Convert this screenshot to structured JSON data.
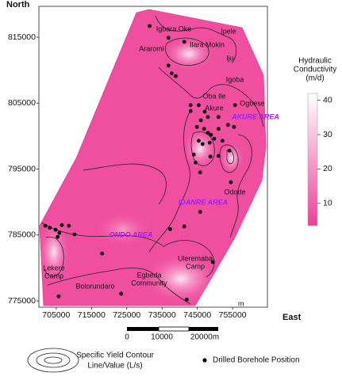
{
  "map": {
    "y_axis_label": "North",
    "x_axis_label": "East",
    "xlim": [
      700000,
      765000
    ],
    "ylim": [
      774000,
      819000
    ],
    "xticks": [
      705000,
      715000,
      725000,
      735000,
      745000,
      755000
    ],
    "yticks": [
      775000,
      785000,
      795000,
      805000,
      815000
    ],
    "places": [
      [
        "Igbara Oke"
      ],
      [
        "Ipele"
      ],
      [
        "Ilara Mokin"
      ],
      [
        "Araromi"
      ],
      [
        "Iju"
      ],
      [
        "Igoba"
      ],
      [
        "Oba Ile"
      ],
      [
        "Ogbese"
      ],
      [
        "Akure"
      ],
      [
        "Odode"
      ],
      [
        "Uleremaba",
        "Camp"
      ],
      [
        "Egbeda",
        "Community"
      ],
      [
        "Lekere",
        "Camp"
      ],
      [
        "Bolorundaro"
      ]
    ],
    "area_labels": [
      "AKURE AREA",
      "IDANRE AREA",
      "ONDO AREA"
    ],
    "corner_mark": "m",
    "boreholes": {
      "x": [
        731500,
        736800,
        741300,
        736800,
        737700,
        738900,
        743100,
        743100,
        745400,
        747100,
        748000,
        746000,
        744900,
        746900,
        748000,
        748900,
        749800,
        745400,
        746500,
        748500,
        751000,
        752100,
        753700,
        755400,
        754100,
        751000,
        744000,
        744500,
        745800,
        748700,
        754500,
        745800,
        741300,
        737300,
        701900,
        703200,
        704800,
        705900,
        706600,
        708600,
        710200,
        705400,
        718000,
        749400,
        723400,
        705700,
        742000,
        755700,
        751000
      ],
      "y": [
        816700,
        814900,
        814300,
        810700,
        809500,
        809100,
        804700,
        803800,
        804700,
        803700,
        802900,
        802400,
        801400,
        801100,
        800500,
        800200,
        799600,
        799300,
        798800,
        799000,
        801100,
        799300,
        801700,
        801400,
        797800,
        797000,
        797200,
        796000,
        794500,
        796900,
        793000,
        788500,
        786300,
        785900,
        786400,
        786100,
        785800,
        785300,
        786500,
        786400,
        785100,
        784700,
        782200,
        780900,
        776100,
        775700,
        775200,
        804700,
        802900
      ]
    }
  },
  "colorbar": {
    "title": [
      "Hydraulic",
      "Conductivity",
      "(m/d)"
    ],
    "lim": [
      3.5,
      42
    ],
    "ticks": [
      10,
      20,
      30,
      40
    ]
  },
  "scale_bar": {
    "labels": [
      "0",
      "10000",
      "20000m"
    ]
  },
  "legend": {
    "contour": [
      "Specific Yield Contour",
      "Line/Value (L/s)"
    ],
    "borehole": "Drilled Borehole Position"
  }
}
